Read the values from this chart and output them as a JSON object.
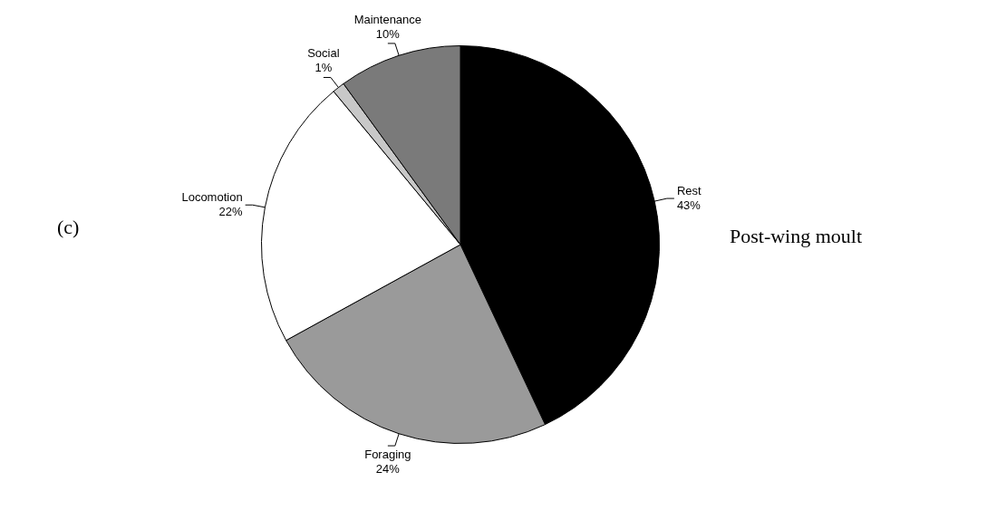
{
  "chart_data": {
    "type": "pie",
    "title": "Post-wing moult",
    "annotations": [
      "(c)"
    ],
    "categories": [
      "Rest",
      "Foraging",
      "Locomotion",
      "Social",
      "Maintenance"
    ],
    "values": [
      43,
      24,
      22,
      1,
      10
    ],
    "value_labels": [
      "43%",
      "24%",
      "22%",
      "1%",
      "10%"
    ],
    "colors": [
      "#000000",
      "#9a9a9a",
      "#ffffff",
      "#c8c8c8",
      "#7a7a7a"
    ],
    "legend": false
  }
}
